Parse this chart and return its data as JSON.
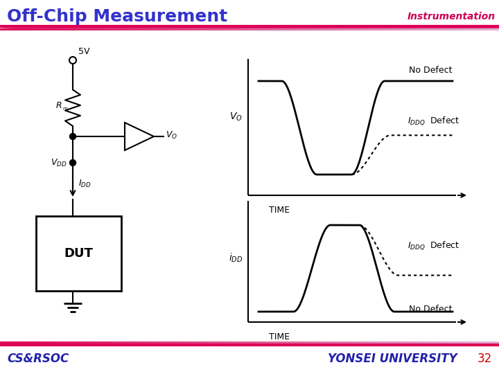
{
  "title": "Off-Chip Measurement",
  "title_color": "#3333cc",
  "instrumentation_text": "Instrumentation",
  "instrumentation_color": "#cc0055",
  "bg_color": "#ffffff",
  "header_line_color1": "#dd0055",
  "header_line_color2": "#ffaacc",
  "footer_line_color1": "#dd0055",
  "footer_line_color2": "#ffaacc",
  "footer_left": "CS&RSOC",
  "footer_right": "YONSEI UNIVERSITY",
  "footer_number": "32",
  "footer_color": "#2222aa",
  "footer_number_color": "#cc0000"
}
